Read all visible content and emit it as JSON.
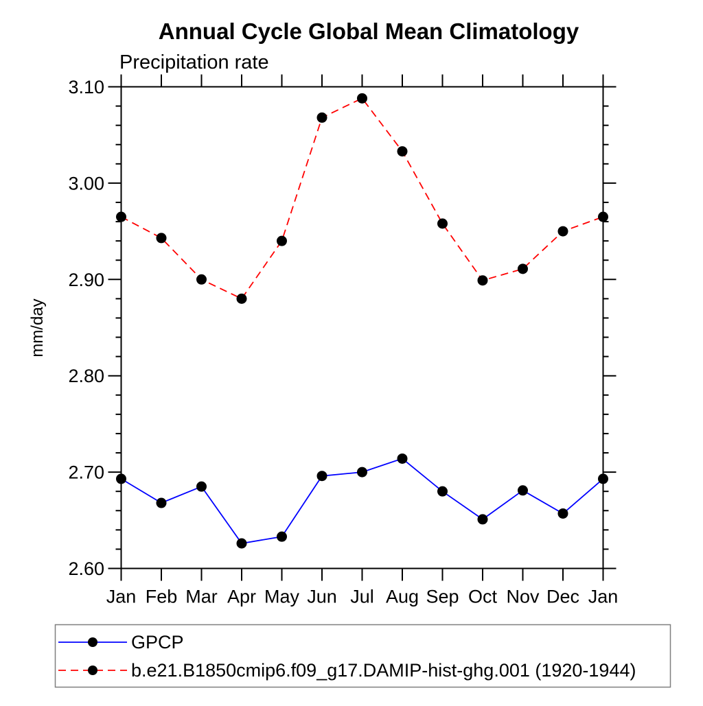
{
  "chart": {
    "title": "Annual Cycle Global Mean Climatology",
    "subtitle": "Precipitation rate",
    "ylabel": "mm/day"
  },
  "legend": {
    "position": "bottom",
    "items": [
      {
        "label": "GPCP",
        "color": "#0000ff",
        "line_style": "solid",
        "marker": "circle",
        "marker_color": "#000000"
      },
      {
        "label": "b.e21.B1850cmip6.f09_g17.DAMIP-hist-ghg.001 (1920-1944)",
        "color": "#ff0000",
        "line_style": "dashed",
        "marker": "circle",
        "marker_color": "#000000"
      }
    ]
  },
  "chart_data": {
    "type": "line",
    "title": "Annual Cycle Global Mean Climatology",
    "subtitle": "Precipitation rate",
    "xlabel": "",
    "ylabel": "mm/day",
    "categories": [
      "Jan",
      "Feb",
      "Mar",
      "Apr",
      "May",
      "Jun",
      "Jul",
      "Aug",
      "Sep",
      "Oct",
      "Nov",
      "Dec",
      "Jan"
    ],
    "series": [
      {
        "name": "GPCP",
        "color": "#0000ff",
        "line_style": "solid",
        "marker": "circle",
        "marker_color": "#000000",
        "values": [
          2.693,
          2.668,
          2.685,
          2.626,
          2.633,
          2.696,
          2.7,
          2.714,
          2.68,
          2.651,
          2.681,
          2.657,
          2.693
        ]
      },
      {
        "name": "b.e21.B1850cmip6.f09_g17.DAMIP-hist-ghg.001 (1920-1944)",
        "color": "#ff0000",
        "line_style": "dashed",
        "marker": "circle",
        "marker_color": "#000000",
        "values": [
          2.965,
          2.943,
          2.9,
          2.88,
          2.94,
          3.068,
          3.088,
          3.033,
          2.958,
          2.899,
          2.911,
          2.95,
          2.965
        ]
      }
    ],
    "ylim": [
      2.6,
      3.1
    ],
    "ytick_major_step": 0.1,
    "ytick_minor_step": 0.02,
    "ytick_labels": [
      "2.60",
      "2.70",
      "2.80",
      "2.90",
      "3.00",
      "3.10"
    ],
    "grid": false,
    "legend_position": "bottom",
    "frame_color": "#000000"
  }
}
